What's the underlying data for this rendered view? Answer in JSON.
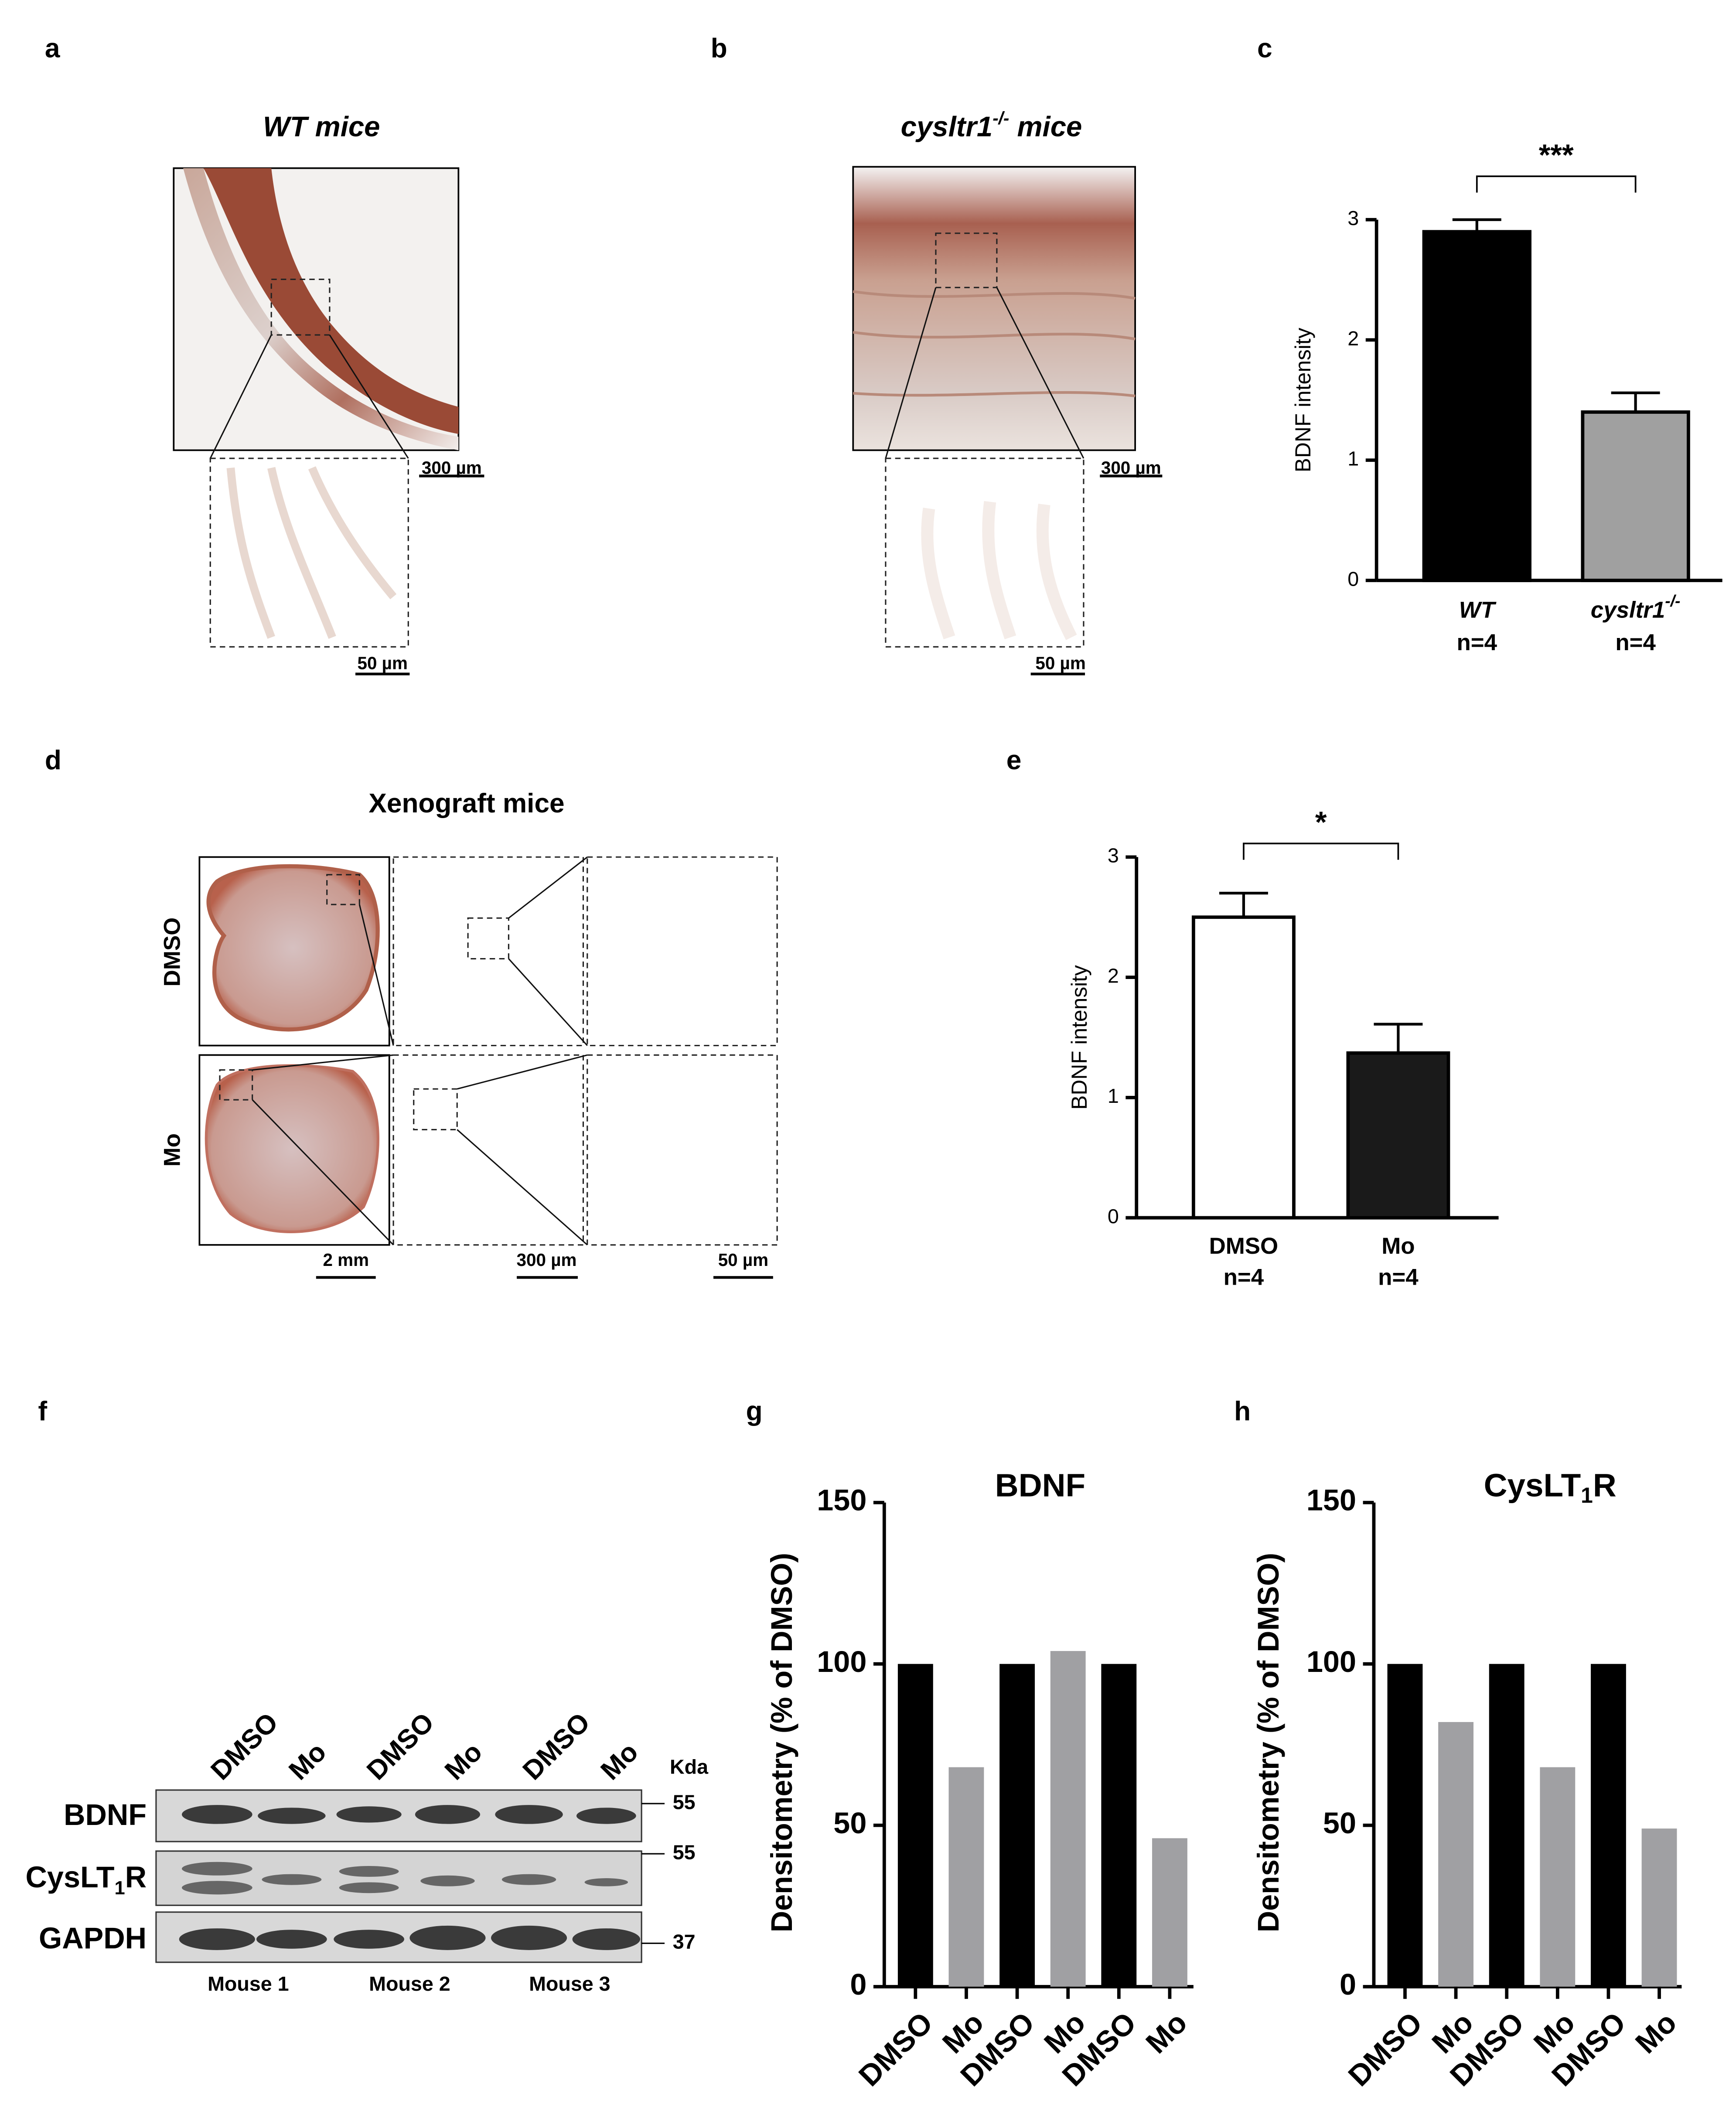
{
  "panel_labels": [
    "a",
    "b",
    "c",
    "d",
    "e",
    "f",
    "g",
    "h"
  ],
  "micrographs": {
    "a": {
      "title": [
        "WT mice"
      ],
      "scale_bars": [
        "300 µm",
        "50 µm"
      ]
    },
    "b": {
      "title": [
        "cysltr1",
        "-/-",
        " mice"
      ],
      "scale_bars": [
        "300 µm",
        "50 µm"
      ]
    },
    "d": {
      "title": [
        "Xenograft mice"
      ],
      "rows": [
        "DMSO",
        "Mo"
      ],
      "scale_bars": [
        "2 mm",
        "300 µm",
        "50 µm"
      ]
    }
  },
  "blot": {
    "lanes": [
      "DMSO",
      "Mo",
      "DMSO",
      "Mo",
      "DMSO",
      "Mo"
    ],
    "unit": "Kda",
    "bands": [
      [
        "BDNF"
      ],
      [
        "CysLT",
        "1",
        "R"
      ],
      [
        "GAPDH"
      ]
    ],
    "markers": [
      "55",
      "55",
      "37"
    ],
    "mice": [
      "Mouse 1",
      "Mouse 2",
      "Mouse 3"
    ]
  },
  "chart_data": [
    {
      "type": "bar",
      "y_label": "BDNF intensity",
      "categories": [
        [
          "WT"
        ],
        [
          "cysltr1",
          "-/-"
        ]
      ],
      "sample_sizes": [
        "n=4",
        "n=4"
      ],
      "values": [
        2.9,
        1.4
      ],
      "errors": [
        0.1,
        0.16
      ],
      "colors": [
        "#000000",
        "#a0a0a0"
      ],
      "significance": "***",
      "ylim": [
        0,
        3
      ],
      "yticks": [
        0,
        1,
        2,
        3
      ]
    },
    {
      "type": "bar",
      "y_label": "BDNF intensity",
      "categories": [
        [
          "DMSO"
        ],
        [
          "Mo"
        ]
      ],
      "sample_sizes": [
        "n=4",
        "n=4"
      ],
      "values": [
        2.5,
        1.37
      ],
      "errors": [
        0.2,
        0.24
      ],
      "colors": [
        "#ffffff",
        "#1a1a1a"
      ],
      "significance": "*",
      "ylim": [
        0,
        3
      ],
      "yticks": [
        0,
        1,
        2,
        3
      ]
    },
    {
      "type": "bar",
      "title": [
        "BDNF"
      ],
      "y_label": "Densitometry (% of DMSO)",
      "categories": [
        [
          "DMSO"
        ],
        [
          "Mo"
        ],
        [
          "DMSO"
        ],
        [
          "Mo"
        ],
        [
          "DMSO"
        ],
        [
          "Mo"
        ]
      ],
      "values": [
        100,
        68,
        100,
        104,
        100,
        46
      ],
      "colors": [
        "#000000",
        "#a0a0a3",
        "#000000",
        "#a0a0a3",
        "#000000",
        "#a0a0a3"
      ],
      "ylim": [
        0,
        150
      ],
      "yticks": [
        0,
        50,
        100,
        150
      ]
    },
    {
      "type": "bar",
      "title": [
        "CysLT",
        "1",
        "R"
      ],
      "y_label": "Densitometry (% of DMSO)",
      "categories": [
        [
          "DMSO"
        ],
        [
          "Mo"
        ],
        [
          "DMSO"
        ],
        [
          "Mo"
        ],
        [
          "DMSO"
        ],
        [
          "Mo"
        ]
      ],
      "values": [
        100,
        82,
        100,
        68,
        100,
        49
      ],
      "colors": [
        "#000000",
        "#a0a0a3",
        "#000000",
        "#a0a0a3",
        "#000000",
        "#a0a0a3"
      ],
      "ylim": [
        0,
        150
      ],
      "yticks": [
        0,
        50,
        100,
        150
      ]
    }
  ]
}
